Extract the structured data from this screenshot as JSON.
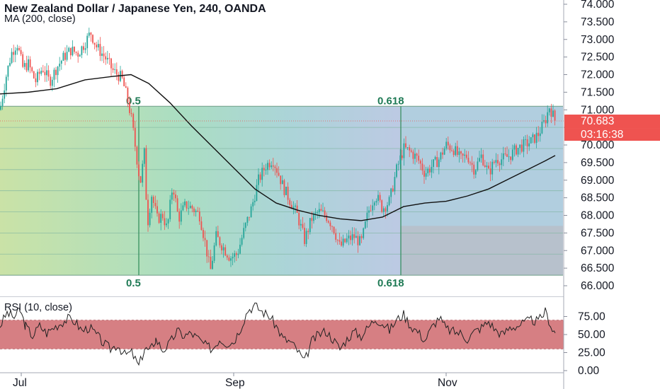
{
  "header": {
    "title": "New Zealand Dollar / Japanese Yen, 240, OANDA",
    "indicator": "MA (200, close)",
    "rsi_label": "RSI (10, close)"
  },
  "colors": {
    "candle_up": "#26a69a",
    "candle_down": "#ef5350",
    "ma_line": "#111111",
    "rsi_line": "#222222",
    "rsi_band": "#d67f83",
    "price_tag": "#ef5350",
    "fib_green": "#2e8b57"
  },
  "price_tag": {
    "last": "70.683",
    "countdown": "03:16:38"
  },
  "chart_data": [
    {
      "type": "candlestick",
      "ylim": [
        66.0,
        74.0
      ],
      "y_ticks": [
        "74.000",
        "73.500",
        "73.000",
        "72.500",
        "72.000",
        "71.500",
        "71.000",
        "70.500",
        "70.000",
        "69.500",
        "69.000",
        "68.500",
        "68.000",
        "67.500",
        "67.000",
        "66.500",
        "66.000"
      ],
      "x_ticks": [
        "Jul",
        "Sep",
        "Nov"
      ],
      "price_path": [
        [
          0,
          71.0
        ],
        [
          8,
          71.9
        ],
        [
          16,
          72.6
        ],
        [
          24,
          72.9
        ],
        [
          32,
          72.2
        ],
        [
          40,
          72.3
        ],
        [
          50,
          71.8
        ],
        [
          60,
          72.2
        ],
        [
          70,
          71.8
        ],
        [
          80,
          72.2
        ],
        [
          90,
          72.5
        ],
        [
          100,
          72.7
        ],
        [
          110,
          72.6
        ],
        [
          120,
          72.9
        ],
        [
          128,
          73.2
        ],
        [
          136,
          72.8
        ],
        [
          148,
          72.5
        ],
        [
          160,
          72.1
        ],
        [
          172,
          71.9
        ],
        [
          180,
          71.3
        ],
        [
          186,
          70.7
        ],
        [
          192,
          69.8
        ],
        [
          198,
          68.9
        ],
        [
          204,
          69.8
        ],
        [
          208,
          67.7
        ],
        [
          214,
          68.6
        ],
        [
          222,
          67.9
        ],
        [
          230,
          68.0
        ],
        [
          236,
          67.6
        ],
        [
          244,
          68.9
        ],
        [
          252,
          67.9
        ],
        [
          262,
          68.3
        ],
        [
          272,
          68.2
        ],
        [
          282,
          68.0
        ],
        [
          290,
          67.2
        ],
        [
          297,
          66.4
        ],
        [
          305,
          67.4
        ],
        [
          315,
          67.1
        ],
        [
          325,
          66.8
        ],
        [
          335,
          66.9
        ],
        [
          345,
          67.6
        ],
        [
          355,
          68.2
        ],
        [
          365,
          69.0
        ],
        [
          375,
          69.4
        ],
        [
          385,
          69.6
        ],
        [
          393,
          69.2
        ],
        [
          400,
          68.8
        ],
        [
          410,
          68.4
        ],
        [
          420,
          68.0
        ],
        [
          430,
          67.3
        ],
        [
          440,
          67.9
        ],
        [
          450,
          68.1
        ],
        [
          460,
          68.0
        ],
        [
          470,
          67.7
        ],
        [
          480,
          67.1
        ],
        [
          490,
          67.3
        ],
        [
          500,
          67.4
        ],
        [
          510,
          67.2
        ],
        [
          520,
          68.1
        ],
        [
          530,
          68.6
        ],
        [
          540,
          68.2
        ],
        [
          550,
          68.4
        ],
        [
          560,
          69.3
        ],
        [
          570,
          69.9
        ],
        [
          580,
          69.8
        ],
        [
          590,
          69.6
        ],
        [
          600,
          69.2
        ],
        [
          610,
          69.4
        ],
        [
          620,
          69.6
        ],
        [
          630,
          70.0
        ],
        [
          640,
          69.9
        ],
        [
          650,
          69.6
        ],
        [
          660,
          69.7
        ],
        [
          670,
          69.3
        ],
        [
          680,
          69.7
        ],
        [
          690,
          69.2
        ],
        [
          700,
          69.6
        ],
        [
          710,
          69.6
        ],
        [
          720,
          69.7
        ],
        [
          730,
          69.9
        ],
        [
          740,
          70.0
        ],
        [
          750,
          70.1
        ],
        [
          760,
          70.3
        ],
        [
          770,
          70.7
        ],
        [
          776,
          71.1
        ],
        [
          784,
          70.68
        ]
      ],
      "ma_200": [
        [
          0,
          71.45
        ],
        [
          40,
          71.5
        ],
        [
          80,
          71.6
        ],
        [
          120,
          71.85
        ],
        [
          160,
          71.95
        ],
        [
          185,
          72.0
        ],
        [
          210,
          71.75
        ],
        [
          240,
          71.2
        ],
        [
          270,
          70.55
        ],
        [
          300,
          69.95
        ],
        [
          330,
          69.35
        ],
        [
          360,
          68.75
        ],
        [
          390,
          68.35
        ],
        [
          420,
          68.15
        ],
        [
          450,
          68.0
        ],
        [
          480,
          67.9
        ],
        [
          510,
          67.85
        ],
        [
          540,
          67.95
        ],
        [
          570,
          68.25
        ],
        [
          600,
          68.35
        ],
        [
          630,
          68.4
        ],
        [
          660,
          68.55
        ],
        [
          690,
          68.75
        ],
        [
          720,
          69.05
        ],
        [
          750,
          69.35
        ],
        [
          770,
          69.55
        ],
        [
          784,
          69.7
        ]
      ],
      "fibonacci": [
        {
          "label": "0.5",
          "high": 71.1,
          "low": 66.3
        },
        {
          "label": "0.618",
          "high": 71.1,
          "low": 66.3
        }
      ]
    },
    {
      "type": "line",
      "name": "RSI (10, close)",
      "ylim": [
        0,
        100
      ],
      "y_ticks": [
        "75.00",
        "50.00",
        "25.00",
        "0.00"
      ],
      "band": [
        30,
        70
      ],
      "values": [
        [
          0,
          62
        ],
        [
          10,
          80
        ],
        [
          20,
          74
        ],
        [
          28,
          84
        ],
        [
          36,
          62
        ],
        [
          46,
          48
        ],
        [
          56,
          62
        ],
        [
          66,
          52
        ],
        [
          76,
          60
        ],
        [
          86,
          66
        ],
        [
          96,
          72
        ],
        [
          106,
          68
        ],
        [
          116,
          55
        ],
        [
          126,
          60
        ],
        [
          136,
          50
        ],
        [
          146,
          38
        ],
        [
          156,
          30
        ],
        [
          166,
          36
        ],
        [
          176,
          22
        ],
        [
          186,
          25
        ],
        [
          196,
          6
        ],
        [
          204,
          30
        ],
        [
          212,
          28
        ],
        [
          220,
          44
        ],
        [
          230,
          28
        ],
        [
          240,
          38
        ],
        [
          250,
          55
        ],
        [
          260,
          48
        ],
        [
          270,
          52
        ],
        [
          280,
          44
        ],
        [
          290,
          35
        ],
        [
          300,
          30
        ],
        [
          310,
          44
        ],
        [
          320,
          38
        ],
        [
          330,
          40
        ],
        [
          340,
          60
        ],
        [
          350,
          84
        ],
        [
          360,
          90
        ],
        [
          370,
          82
        ],
        [
          380,
          76
        ],
        [
          390,
          62
        ],
        [
          400,
          44
        ],
        [
          410,
          40
        ],
        [
          420,
          28
        ],
        [
          430,
          12
        ],
        [
          440,
          40
        ],
        [
          450,
          50
        ],
        [
          460,
          55
        ],
        [
          470,
          44
        ],
        [
          480,
          30
        ],
        [
          490,
          44
        ],
        [
          500,
          54
        ],
        [
          510,
          48
        ],
        [
          520,
          60
        ],
        [
          530,
          72
        ],
        [
          540,
          66
        ],
        [
          550,
          56
        ],
        [
          560,
          70
        ],
        [
          570,
          78
        ],
        [
          580,
          62
        ],
        [
          590,
          54
        ],
        [
          600,
          42
        ],
        [
          610,
          60
        ],
        [
          620,
          74
        ],
        [
          630,
          58
        ],
        [
          640,
          54
        ],
        [
          650,
          52
        ],
        [
          660,
          44
        ],
        [
          670,
          54
        ],
        [
          680,
          60
        ],
        [
          690,
          68
        ],
        [
          700,
          56
        ],
        [
          710,
          50
        ],
        [
          720,
          60
        ],
        [
          730,
          62
        ],
        [
          740,
          66
        ],
        [
          750,
          70
        ],
        [
          760,
          68
        ],
        [
          770,
          82
        ],
        [
          780,
          58
        ],
        [
          784,
          52
        ]
      ]
    }
  ]
}
